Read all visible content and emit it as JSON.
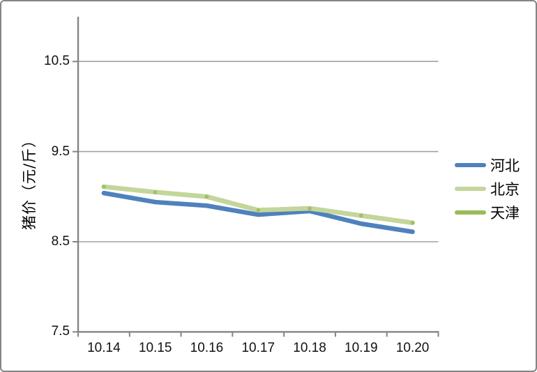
{
  "chart_data": {
    "type": "line",
    "title": "",
    "xlabel": "",
    "ylabel": "猪价（元/斤）",
    "categories": [
      "10.14",
      "10.15",
      "10.16",
      "10.17",
      "10.18",
      "10.19",
      "10.20"
    ],
    "series": [
      {
        "name": "河北",
        "color": "#4F81BD",
        "values": [
          9.04,
          8.94,
          8.9,
          8.8,
          8.84,
          8.7,
          8.61
        ]
      },
      {
        "name": "北京",
        "color": "#C3D69B",
        "values": [
          9.11,
          9.05,
          9.0,
          8.85,
          8.87,
          8.79,
          8.71
        ]
      },
      {
        "name": "天津",
        "color": "#9BBB59",
        "values": [
          9.11,
          9.05,
          9.0,
          8.85,
          8.87,
          8.79,
          8.71
        ]
      }
    ],
    "y_ticks": [
      7.5,
      8.5,
      9.5,
      10.5
    ],
    "ylim": [
      7.5,
      11.0
    ],
    "grid": true,
    "legend_position": "right",
    "axis_color": "#848484",
    "gridline_color": "#a0a0a0"
  }
}
